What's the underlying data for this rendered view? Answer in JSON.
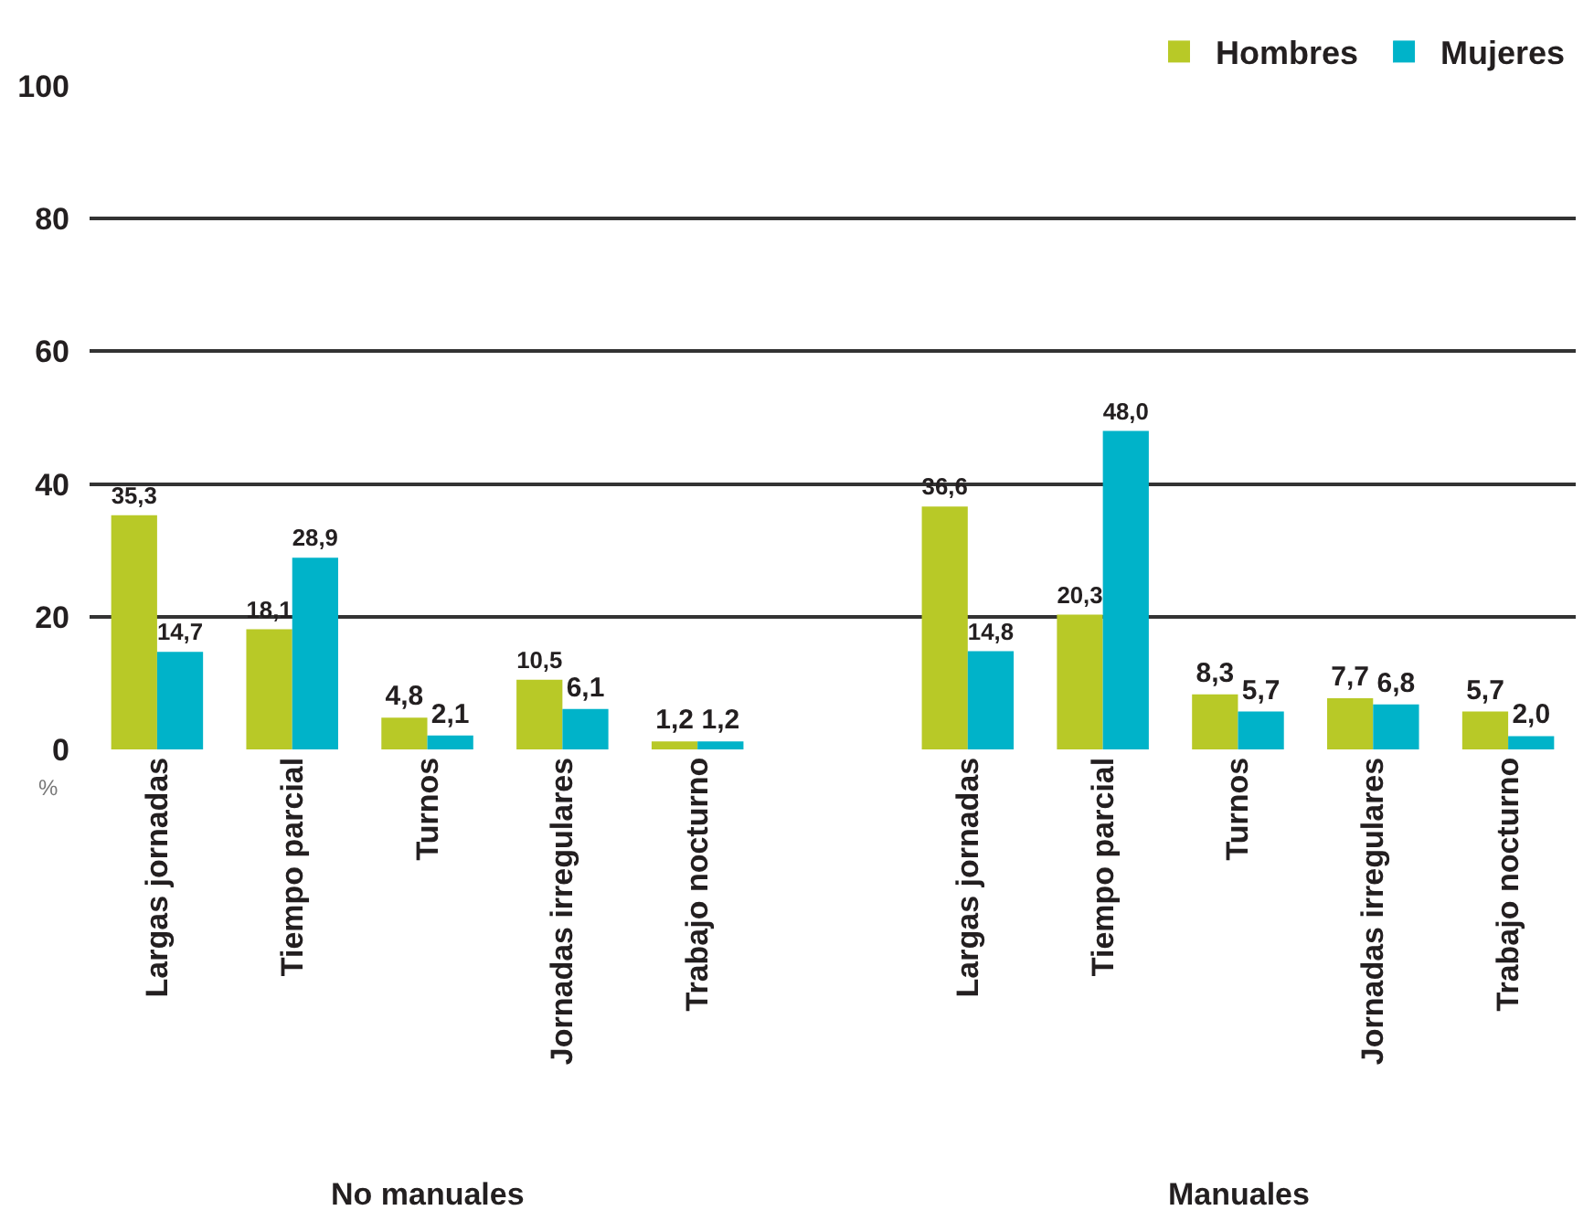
{
  "chart_data": {
    "type": "bar",
    "categories": [
      "Largas jornadas",
      "Tiempo parcial",
      "Turnos",
      "Jornadas irregulares",
      "Trabajo nocturno",
      null,
      "Largas jornadas",
      "Tiempo parcial",
      "Turnos",
      "Jornadas irregulares",
      "Trabajo nocturno"
    ],
    "series": [
      {
        "name": "Hombres",
        "color": "#b8c927",
        "values": [
          35.3,
          18.1,
          4.8,
          10.5,
          1.2,
          null,
          36.6,
          20.3,
          8.3,
          7.7,
          5.7
        ],
        "value_labels": [
          "35,3",
          "18,1",
          "4,8",
          "10,5",
          "1,2",
          null,
          "36,6",
          "20,3",
          "8,3",
          "7,7",
          "5,7"
        ]
      },
      {
        "name": "Mujeres",
        "color": "#00b3c9",
        "values": [
          14.7,
          28.9,
          2.1,
          6.1,
          1.2,
          null,
          14.8,
          48.0,
          5.7,
          6.8,
          2.0
        ],
        "value_labels": [
          "14,7",
          "28,9",
          "2,1",
          "6,1",
          "1,2",
          null,
          "14,8",
          "48,0",
          "5,7",
          "6,8",
          "2,0"
        ]
      }
    ],
    "ylim": [
      0,
      100
    ],
    "yticks": [
      0,
      20,
      40,
      60,
      80,
      100
    ],
    "ylabel": "%",
    "annotations": [
      "No manuales",
      "Manuales"
    ],
    "grid": "y",
    "legend": "top right"
  }
}
